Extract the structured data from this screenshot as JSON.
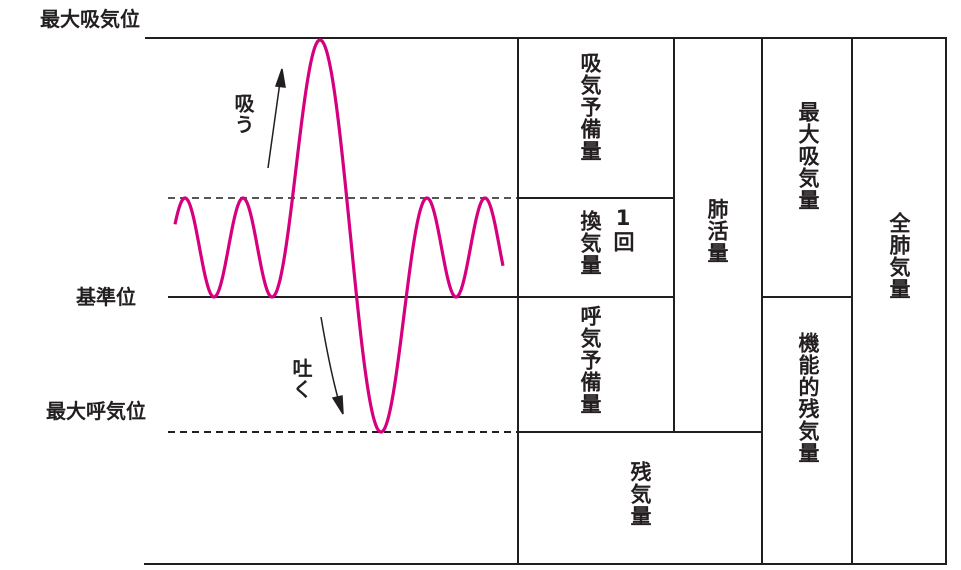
{
  "levels": {
    "max_inspiratory": "最大吸気位",
    "resting": "基準位",
    "max_expiratory": "最大呼気位"
  },
  "arrows": {
    "inhale": "吸う",
    "exhale": "吐く"
  },
  "volumes": {
    "irv": "吸気予備量",
    "tv_main": "換気量",
    "tv_prefix": "1回",
    "erv": "呼気予備量",
    "rv": "残気量",
    "vc": "肺活量",
    "ic": "最大吸気量",
    "frc": "機能的残気量",
    "tlc": "全肺気量"
  },
  "colors": {
    "trace": "#d6007f",
    "lines": "#231f20"
  }
}
